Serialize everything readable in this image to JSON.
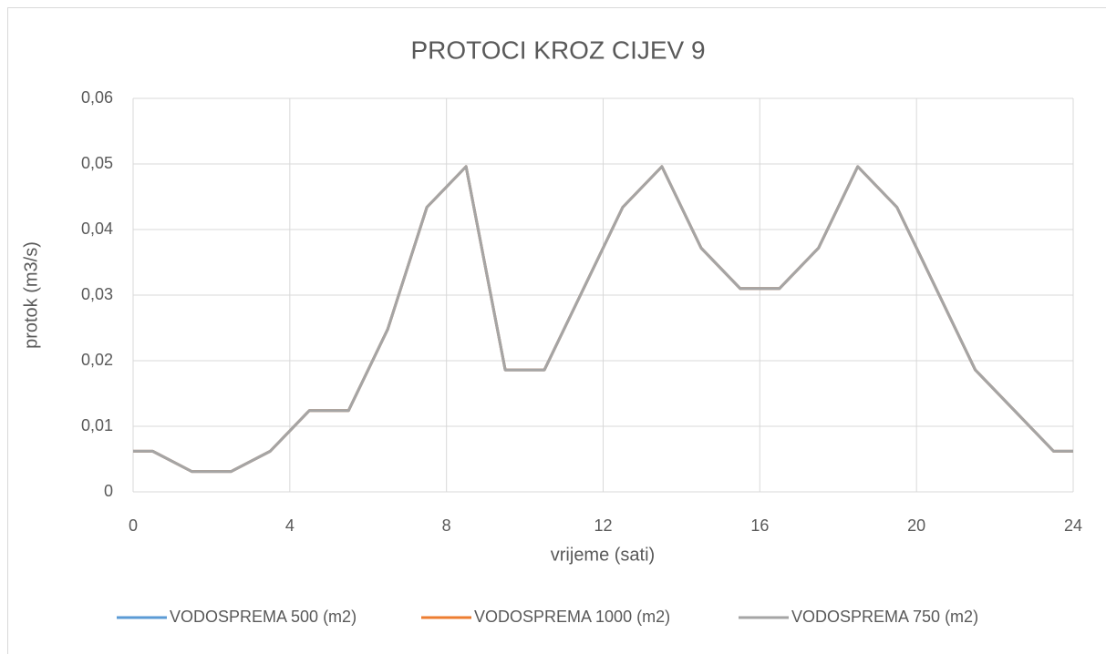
{
  "chart_data": {
    "type": "line",
    "title": "PROTOCI KROZ CIJEV 9",
    "xlabel": "vrijeme (sati)",
    "ylabel": "protok (m3/s)",
    "x": [
      0,
      0.5,
      1.5,
      2.5,
      3.5,
      4.5,
      5.5,
      6.5,
      7.5,
      8.5,
      9.5,
      10.5,
      11.5,
      12.5,
      13.5,
      14.5,
      15.5,
      16.5,
      17.5,
      18.5,
      19.5,
      20.5,
      21.5,
      22.5,
      23.5,
      24
    ],
    "series": [
      {
        "name": "VODOSPREMA 500 (m2)",
        "color": "#5b9bd5",
        "values": [
          0.0062,
          0.0062,
          0.0031,
          0.0031,
          0.0062,
          0.0124,
          0.0124,
          0.0248,
          0.0434,
          0.0496,
          0.0186,
          0.0186,
          0.031,
          0.0434,
          0.0496,
          0.0372,
          0.031,
          0.031,
          0.0372,
          0.0496,
          0.0434,
          0.031,
          0.0186,
          0.0124,
          0.0062,
          0.0062
        ]
      },
      {
        "name": "VODOSPREMA 1000 (m2)",
        "color": "#ed7d31",
        "values": [
          0.0062,
          0.0062,
          0.0031,
          0.0031,
          0.0062,
          0.0124,
          0.0124,
          0.0248,
          0.0434,
          0.0496,
          0.0186,
          0.0186,
          0.031,
          0.0434,
          0.0496,
          0.0372,
          0.031,
          0.031,
          0.0372,
          0.0496,
          0.0434,
          0.031,
          0.0186,
          0.0124,
          0.0062,
          0.0062
        ]
      },
      {
        "name": "VODOSPREMA 750 (m2)",
        "color": "#a5a5a5",
        "values": [
          0.0062,
          0.0062,
          0.0031,
          0.0031,
          0.0062,
          0.0124,
          0.0124,
          0.0248,
          0.0434,
          0.0496,
          0.0186,
          0.0186,
          0.031,
          0.0434,
          0.0496,
          0.0372,
          0.031,
          0.031,
          0.0372,
          0.0496,
          0.0434,
          0.031,
          0.0186,
          0.0124,
          0.0062,
          0.0062
        ]
      }
    ],
    "xlim": [
      0,
      24
    ],
    "xticks": [
      0,
      4,
      8,
      12,
      16,
      20,
      24
    ],
    "ylim": [
      0,
      0.06
    ],
    "yticks": [
      0,
      {
        "value": 0.01,
        "label": "0,01"
      },
      {
        "value": 0.02,
        "label": "0,02"
      },
      {
        "value": 0.03,
        "label": "0,03"
      },
      {
        "value": 0.04,
        "label": "0,04"
      },
      {
        "value": 0.05,
        "label": "0,05"
      },
      {
        "value": 0.06,
        "label": "0,06"
      }
    ],
    "grid": true,
    "legend": "bottom"
  }
}
